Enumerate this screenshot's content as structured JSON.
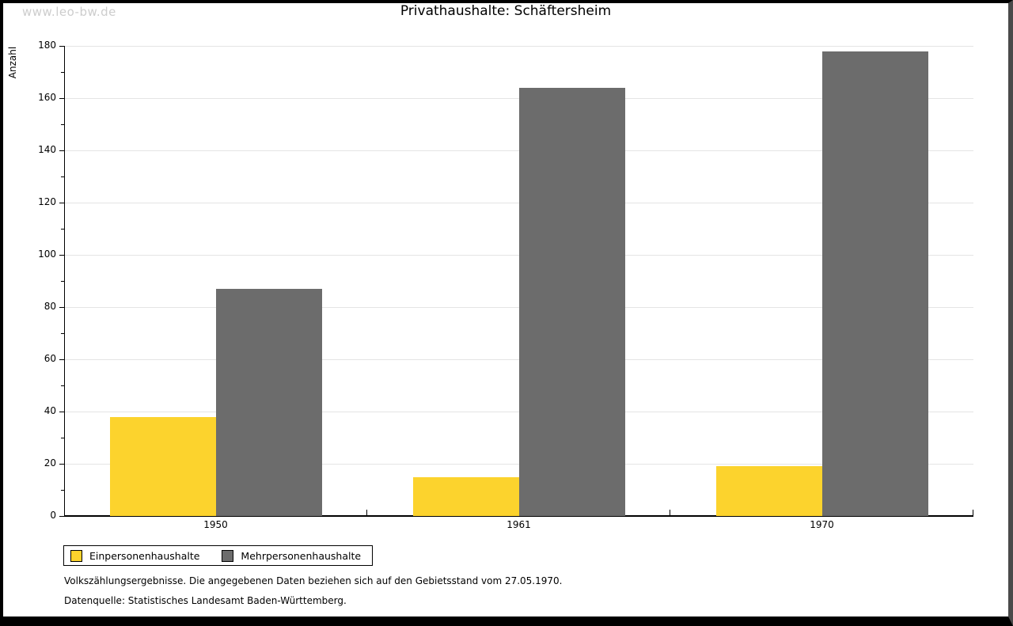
{
  "watermark": "www.leo-bw.de",
  "chart_data": {
    "type": "bar",
    "title": "Privathaushalte: Schäftersheim",
    "ylabel": "Anzahl",
    "xlabel": "",
    "categories": [
      "1950",
      "1961",
      "1970"
    ],
    "series": [
      {
        "name": "Einpersonenhaushalte",
        "color": "#FCD32D",
        "values": [
          38,
          15,
          19
        ]
      },
      {
        "name": "Mehrpersonenhaushalte",
        "color": "#6C6C6C",
        "values": [
          87,
          164,
          178
        ]
      }
    ],
    "ylim": [
      0,
      180
    ],
    "ytick_step": 20,
    "minor_tick_step": 10,
    "grid": true,
    "gridline_color": "#e4e4e4",
    "legend_position": "bottom-left"
  },
  "footnotes": {
    "line1": "Volkszählungsergebnisse. Die angegebenen Daten beziehen sich auf den Gebietsstand vom 27.05.1970.",
    "line2": "Datenquelle: Statistisches Landesamt Baden-Württemberg."
  }
}
